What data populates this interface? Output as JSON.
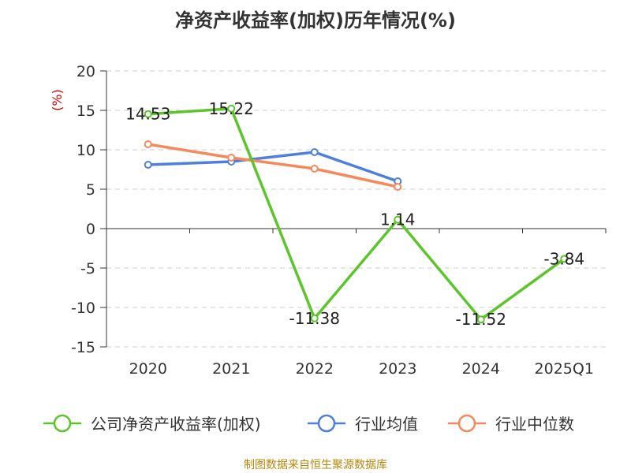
{
  "title": "净资产收益率(加权)历年情况(%)",
  "source": "制图数据来自恒生聚源数据库",
  "chart_data": {
    "type": "line",
    "title": "净资产收益率(加权)历年情况(%)",
    "ylabel": "(%)",
    "ylim": [
      -15,
      20
    ],
    "yticks": [
      20,
      15,
      10,
      5,
      0,
      -5,
      -10,
      -15
    ],
    "grid": true,
    "legend_position": "bottom",
    "categories": [
      "2020",
      "2021",
      "2022",
      "2023",
      "2024",
      "2025Q1"
    ],
    "series": [
      {
        "name": "公司净资产收益率(加权)",
        "color": "#5cc52c",
        "values": [
          14.53,
          15.22,
          -11.38,
          1.14,
          -11.52,
          -3.84
        ],
        "labels": [
          "14.53",
          "15.22",
          "-11.38",
          "1.14",
          "-11.52",
          "-3.84"
        ]
      },
      {
        "name": "行业均值",
        "color": "#4f7fdc",
        "values": [
          8.1,
          8.5,
          9.7,
          6.0,
          null,
          null
        ]
      },
      {
        "name": "行业中位数",
        "color": "#f5895c",
        "values": [
          10.7,
          9.0,
          7.6,
          5.3,
          null,
          null
        ]
      }
    ]
  }
}
